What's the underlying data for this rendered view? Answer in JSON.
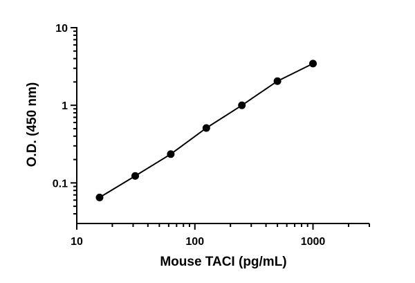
{
  "chart_data": {
    "type": "line",
    "markers": true,
    "color": "#000000",
    "xlabel": "Mouse TACI (pg/mL)",
    "ylabel": "O.D. (450 nm)",
    "x": [
      15.6,
      31.25,
      62.5,
      125,
      250,
      500,
      1000
    ],
    "values": [
      0.065,
      0.123,
      0.235,
      0.51,
      1.0,
      2.05,
      3.45
    ],
    "xscale": "log",
    "yscale": "log",
    "xlim": [
      10,
      3000
    ],
    "ylim": [
      0.03,
      10
    ],
    "xticks": [
      10,
      100,
      1000
    ],
    "yticks": [
      0.1,
      1,
      10
    ],
    "xminor_ticks": [
      20,
      30,
      40,
      50,
      60,
      70,
      80,
      90,
      200,
      300,
      400,
      500,
      600,
      700,
      800,
      900,
      2000,
      3000
    ],
    "yminor_ticks": [
      0.04,
      0.05,
      0.06,
      0.07,
      0.08,
      0.09,
      0.2,
      0.3,
      0.4,
      0.5,
      0.6,
      0.7,
      0.8,
      0.9,
      2,
      3,
      4,
      5,
      6,
      7,
      8,
      9
    ]
  }
}
